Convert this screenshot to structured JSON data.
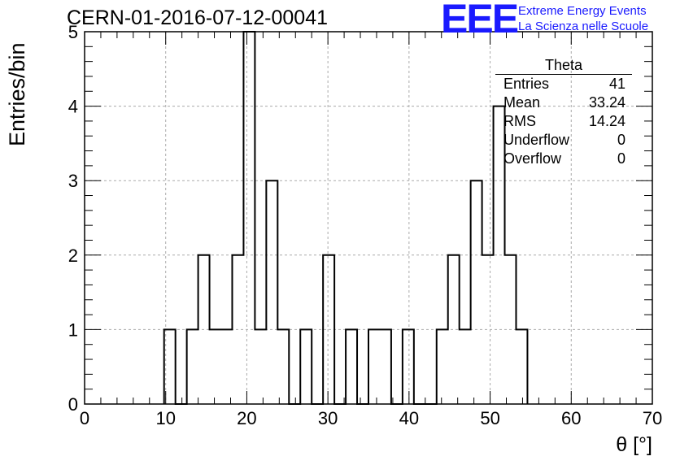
{
  "header": {
    "run_title": "CERN-01-2016-07-12-00041",
    "logo": "EEE",
    "logo_line1": "Extreme Energy Events",
    "logo_line2": "La Scienza nelle Scuole",
    "logo_color": "#1a1aff"
  },
  "stats": {
    "title": "Theta",
    "rows": [
      {
        "label": "Entries",
        "value": "41"
      },
      {
        "label": "Mean",
        "value": "33.24"
      },
      {
        "label": "RMS",
        "value": "14.24"
      },
      {
        "label": "Underflow",
        "value": "0"
      },
      {
        "label": "Overflow",
        "value": "0"
      }
    ]
  },
  "chart_data": {
    "type": "bar",
    "histogram": true,
    "title": "CERN-01-2016-07-12-00041",
    "xlabel": "θ [°]",
    "ylabel": "Entries/bin",
    "xlim": [
      0,
      70
    ],
    "ylim": [
      0,
      5
    ],
    "grid": true,
    "x_ticks": [
      0,
      10,
      20,
      30,
      40,
      50,
      60,
      70
    ],
    "y_ticks": [
      0,
      1,
      2,
      3,
      4,
      5
    ],
    "bin_edges": [
      9.8,
      11.2,
      12.6,
      14.0,
      15.4,
      16.8,
      18.2,
      19.6,
      21.0,
      22.4,
      23.8,
      25.2,
      26.6,
      28.0,
      29.4,
      30.8,
      32.2,
      33.6,
      35.0,
      36.4,
      37.8,
      39.2,
      40.6,
      42.0,
      43.4,
      44.8,
      46.2,
      47.6,
      49.0,
      50.4,
      51.8,
      53.2,
      54.6
    ],
    "values": [
      1,
      0,
      1,
      2,
      1,
      1,
      2,
      5,
      1,
      3,
      1,
      0,
      1,
      0,
      2,
      0,
      1,
      0,
      1,
      1,
      0,
      1,
      0,
      0,
      1,
      2,
      1,
      3,
      2,
      4,
      2,
      1
    ]
  }
}
